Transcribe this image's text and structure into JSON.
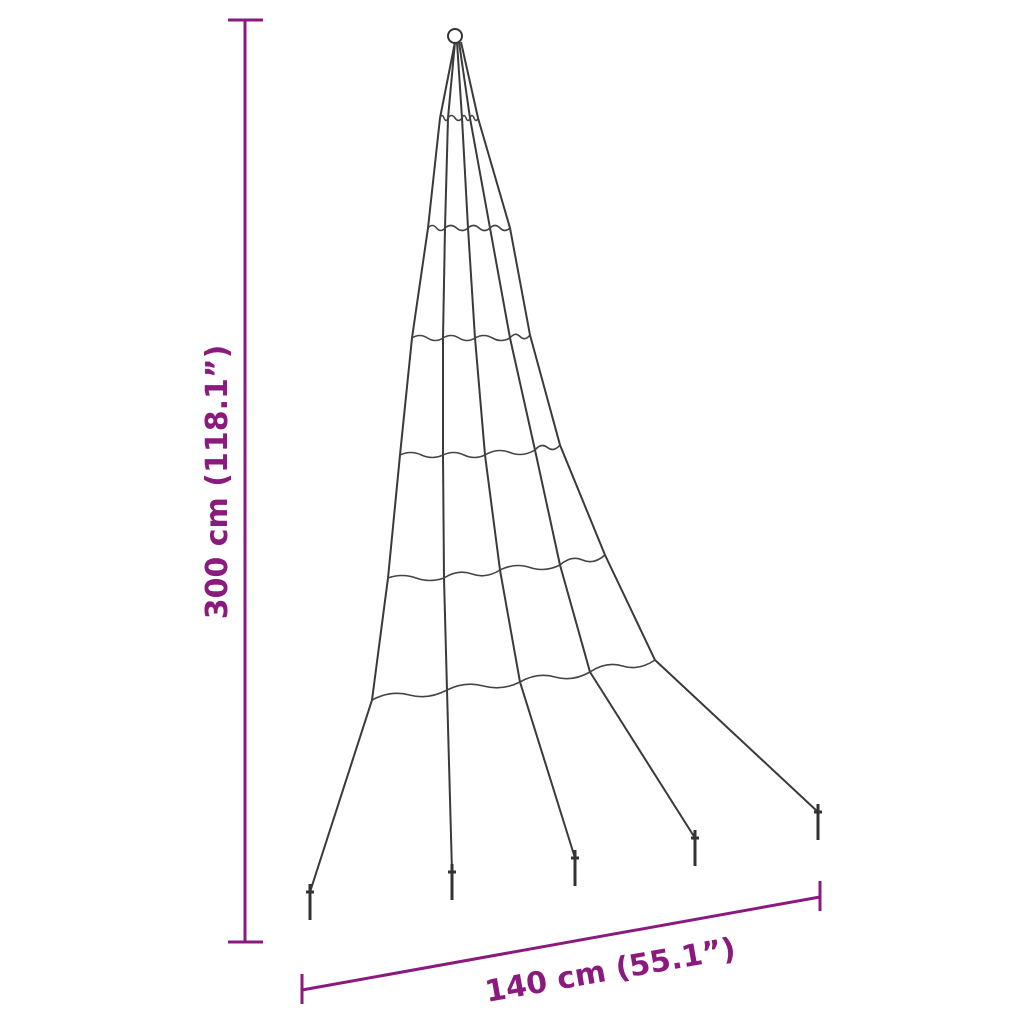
{
  "diagram": {
    "subject": "cone-shaped light string tree with ground stakes",
    "accent_color": "#8b1a7e",
    "height_label": "300 cm (118.1”)",
    "width_label": "140 cm (55.1”)"
  }
}
